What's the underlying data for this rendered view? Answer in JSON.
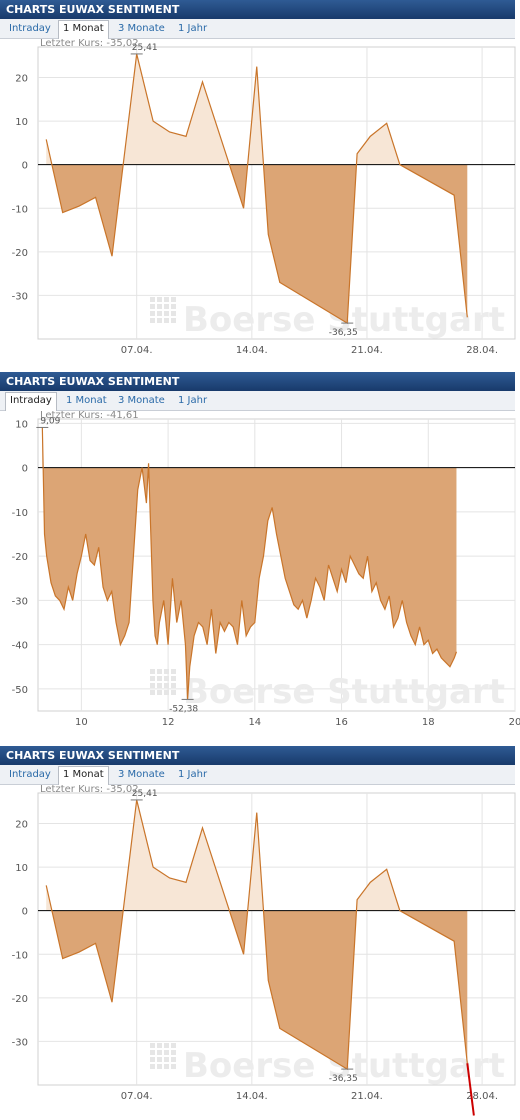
{
  "panels": [
    {
      "header": "CHARTS EUWAX SENTIMENT",
      "tabs": [
        "Intraday",
        "1 Monat",
        "3 Monate",
        "1 Jahr"
      ],
      "active_tab": "1 Monat",
      "last_price_label": "Letzter Kurs: -35,02",
      "watermark": "Boerse Stuttgart",
      "max_label": "25,41",
      "min_label": "-36,35"
    },
    {
      "header": "CHARTS EUWAX SENTIMENT",
      "tabs": [
        "Intraday",
        "1 Monat",
        "3 Monate",
        "1 Jahr"
      ],
      "active_tab": "Intraday",
      "last_price_label": "Letzter Kurs: -41,61",
      "watermark": "Boerse Stuttgart",
      "max_label": "9,09",
      "min_label": "-52,38"
    },
    {
      "header": "CHARTS EUWAX SENTIMENT",
      "tabs": [
        "Intraday",
        "1 Monat",
        "3 Monate",
        "1 Jahr"
      ],
      "active_tab": "1 Monat",
      "last_price_label": "Letzter Kurs: -35,02",
      "watermark": "Boerse Stuttgart",
      "max_label": "25,41",
      "min_label": "-36,35"
    }
  ],
  "chart_data": [
    {
      "type": "area",
      "x_ticks": [
        "07.04.",
        "14.04.",
        "21.04.",
        "28.04."
      ],
      "y_ticks": [
        20,
        10,
        0,
        -10,
        -20,
        -30
      ],
      "ylim": [
        -40,
        27
      ],
      "x_day_range": [
        1,
        30
      ],
      "x_tick_days": [
        7,
        14,
        21,
        28
      ],
      "x": [
        1.5,
        2.5,
        3.5,
        4.5,
        5.5,
        7,
        8,
        9,
        10,
        11,
        13.5,
        14.3,
        15,
        15.7,
        19.8,
        20.4,
        21.2,
        22.2,
        23,
        26.3,
        27.1
      ],
      "y": [
        5.8,
        -11,
        -9.5,
        -7.5,
        -21,
        25.41,
        10,
        7.5,
        6.5,
        19,
        -10,
        22.5,
        -16,
        -27,
        -36.35,
        2.5,
        6.5,
        9.5,
        0,
        -7,
        -35.02
      ],
      "colors": {
        "positive_fill": "#f7e6d6",
        "negative_fill": "#dca575",
        "line": "#c9752a",
        "zero_line": "#000000"
      },
      "grid": true
    },
    {
      "type": "area",
      "x_ticks": [
        "10",
        "12",
        "14",
        "16",
        "18",
        "20"
      ],
      "y_ticks": [
        10,
        0,
        -10,
        -20,
        -30,
        -40,
        -50
      ],
      "ylim": [
        -55,
        11
      ],
      "x_range": [
        9,
        20
      ],
      "x": [
        9.1,
        9.15,
        9.2,
        9.3,
        9.4,
        9.5,
        9.6,
        9.7,
        9.8,
        9.9,
        10.0,
        10.1,
        10.2,
        10.3,
        10.4,
        10.5,
        10.6,
        10.7,
        10.8,
        10.9,
        11.0,
        11.1,
        11.2,
        11.3,
        11.4,
        11.5,
        11.55,
        11.65,
        11.7,
        11.75,
        11.8,
        11.9,
        12.0,
        12.1,
        12.2,
        12.3,
        12.4,
        12.45,
        12.5,
        12.6,
        12.7,
        12.8,
        12.9,
        13.0,
        13.1,
        13.2,
        13.3,
        13.4,
        13.5,
        13.6,
        13.7,
        13.8,
        13.9,
        14.0,
        14.1,
        14.2,
        14.3,
        14.4,
        14.5,
        14.6,
        14.7,
        14.8,
        14.9,
        15.0,
        15.1,
        15.2,
        15.3,
        15.4,
        15.5,
        15.6,
        15.7,
        15.8,
        15.9,
        16.0,
        16.1,
        16.2,
        16.3,
        16.4,
        16.5,
        16.6,
        16.7,
        16.8,
        16.9,
        17.0,
        17.1,
        17.2,
        17.3,
        17.4,
        17.5,
        17.6,
        17.7,
        17.8,
        17.9,
        18.0,
        18.1,
        18.2,
        18.3,
        18.4,
        18.5,
        18.6,
        18.65
      ],
      "y": [
        9.09,
        -15,
        -20,
        -26,
        -29,
        -30,
        -32,
        -27,
        -30,
        -24,
        -20,
        -15,
        -21,
        -22,
        -18,
        -27,
        -30,
        -28,
        -35,
        -40,
        -38,
        -35,
        -20,
        -5,
        0,
        -8,
        1,
        -30,
        -38,
        -40,
        -35,
        -30,
        -40,
        -25,
        -35,
        -30,
        -40,
        -52.38,
        -45,
        -38,
        -35,
        -36,
        -40,
        -32,
        -42,
        -35,
        -37,
        -35,
        -36,
        -40,
        -30,
        -38,
        -36,
        -35,
        -25,
        -20,
        -12,
        -9,
        -15,
        -20,
        -25,
        -28,
        -31,
        -32,
        -30,
        -34,
        -30,
        -25,
        -27,
        -30,
        -22,
        -25,
        -28,
        -23,
        -26,
        -20,
        -22,
        -24,
        -25,
        -20,
        -28,
        -26,
        -30,
        -32,
        -29,
        -36,
        -34,
        -30,
        -35,
        -38,
        -40,
        -36,
        -40,
        -39,
        -42,
        -41,
        -43,
        -44,
        -45,
        -43,
        -41.61
      ],
      "colors": {
        "negative_fill": "#dca575",
        "line": "#c9752a",
        "zero_line": "#000000"
      },
      "grid": true
    },
    {
      "type": "area",
      "x_ticks": [
        "07.04.",
        "14.04.",
        "21.04.",
        "28.04."
      ],
      "y_ticks": [
        20,
        10,
        0,
        -10,
        -20,
        -30
      ],
      "ylim": [
        -40,
        27
      ],
      "x_day_range": [
        1,
        30
      ],
      "x_tick_days": [
        7,
        14,
        21,
        28
      ],
      "x": [
        1.5,
        2.5,
        3.5,
        4.5,
        5.5,
        7,
        8,
        9,
        10,
        11,
        13.5,
        14.3,
        15,
        15.7,
        19.8,
        20.4,
        21.2,
        22.2,
        23,
        26.3,
        27.1
      ],
      "y": [
        5.8,
        -11,
        -9.5,
        -7.5,
        -21,
        25.41,
        10,
        7.5,
        6.5,
        19,
        -10,
        22.5,
        -16,
        -27,
        -36.35,
        2.5,
        6.5,
        9.5,
        0,
        -7,
        -35.02
      ],
      "colors": {
        "positive_fill": "#f7e6d6",
        "negative_fill": "#dca575",
        "line": "#c9752a",
        "zero_line": "#000000",
        "overlay_line": "#cc0000"
      },
      "grid": true,
      "overlay": {
        "x": [
          27.1,
          27.5
        ],
        "y": [
          -35.02,
          -47
        ]
      }
    }
  ]
}
